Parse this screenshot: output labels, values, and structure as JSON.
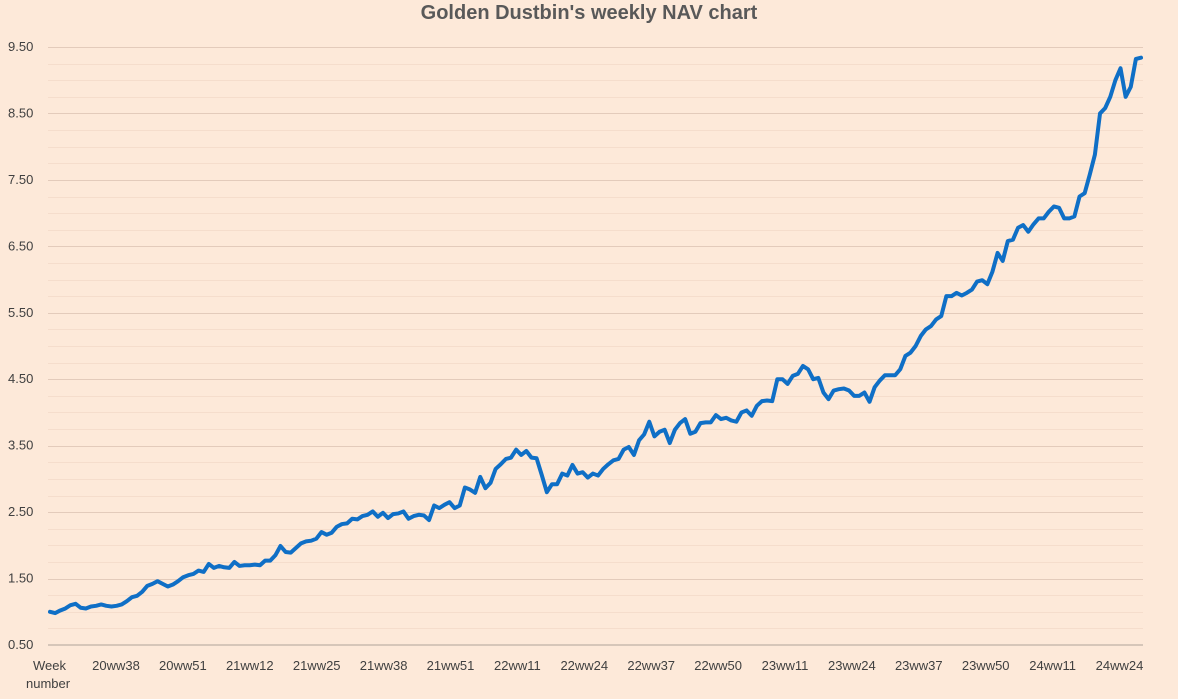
{
  "chart_data": {
    "type": "line",
    "title": "Golden Dustbin's weekly NAV chart",
    "xlabel": "Week number",
    "xlabel_lines": [
      "Week",
      "number"
    ],
    "ylabel": "",
    "ylim": [
      0.5,
      9.5
    ],
    "yticks": [
      "0.50",
      "1.50",
      "2.50",
      "3.50",
      "4.50",
      "5.50",
      "6.50",
      "7.50",
      "8.50",
      "9.50"
    ],
    "xtick_labels": [
      "20ww38",
      "20ww51",
      "21ww12",
      "21ww25",
      "21ww38",
      "21ww51",
      "22ww11",
      "22ww24",
      "22ww37",
      "22ww50",
      "23ww11",
      "23ww24",
      "23ww37",
      "23ww50",
      "24ww11",
      "24ww24"
    ],
    "grid": true,
    "line_color": "#0f6fc6",
    "background": "#fde9d9",
    "series": [
      {
        "name": "NAV",
        "values": [
          1.0,
          0.98,
          1.02,
          1.05,
          1.1,
          1.12,
          1.06,
          1.05,
          1.08,
          1.09,
          1.11,
          1.09,
          1.08,
          1.09,
          1.11,
          1.16,
          1.22,
          1.24,
          1.3,
          1.39,
          1.42,
          1.46,
          1.42,
          1.38,
          1.41,
          1.46,
          1.52,
          1.55,
          1.57,
          1.62,
          1.6,
          1.72,
          1.66,
          1.69,
          1.67,
          1.66,
          1.75,
          1.69,
          1.7,
          1.7,
          1.71,
          1.7,
          1.77,
          1.77,
          1.85,
          1.99,
          1.9,
          1.89,
          1.96,
          2.03,
          2.06,
          2.07,
          2.1,
          2.2,
          2.16,
          2.19,
          2.28,
          2.32,
          2.33,
          2.4,
          2.39,
          2.44,
          2.46,
          2.51,
          2.43,
          2.49,
          2.41,
          2.47,
          2.48,
          2.51,
          2.4,
          2.44,
          2.46,
          2.45,
          2.38,
          2.6,
          2.56,
          2.61,
          2.65,
          2.56,
          2.6,
          2.87,
          2.84,
          2.79,
          3.03,
          2.86,
          2.94,
          3.15,
          3.22,
          3.3,
          3.32,
          3.44,
          3.36,
          3.42,
          3.32,
          3.31,
          3.06,
          2.8,
          2.92,
          2.92,
          3.08,
          3.05,
          3.21,
          3.08,
          3.1,
          3.02,
          3.08,
          3.05,
          3.15,
          3.22,
          3.28,
          3.3,
          3.44,
          3.48,
          3.36,
          3.58,
          3.67,
          3.86,
          3.64,
          3.71,
          3.74,
          3.54,
          3.74,
          3.84,
          3.9,
          3.68,
          3.71,
          3.84,
          3.85,
          3.85,
          3.96,
          3.9,
          3.92,
          3.88,
          3.86,
          4.0,
          4.03,
          3.95,
          4.1,
          4.17,
          4.18,
          4.17,
          4.5,
          4.5,
          4.43,
          4.55,
          4.58,
          4.7,
          4.65,
          4.5,
          4.52,
          4.3,
          4.2,
          4.33,
          4.35,
          4.36,
          4.33,
          4.25,
          4.25,
          4.3,
          4.16,
          4.38,
          4.48,
          4.56,
          4.56,
          4.56,
          4.65,
          4.85,
          4.9,
          5.0,
          5.15,
          5.25,
          5.3,
          5.4,
          5.45,
          5.75,
          5.75,
          5.8,
          5.76,
          5.8,
          5.85,
          5.97,
          5.99,
          5.93,
          6.12,
          6.4,
          6.28,
          6.58,
          6.6,
          6.78,
          6.82,
          6.72,
          6.83,
          6.92,
          6.92,
          7.02,
          7.1,
          7.08,
          6.92,
          6.92,
          6.95,
          7.25,
          7.3,
          7.58,
          7.88,
          8.5,
          8.58,
          8.75,
          9.0,
          9.18,
          8.75,
          8.9,
          9.32,
          9.34
        ]
      }
    ]
  }
}
